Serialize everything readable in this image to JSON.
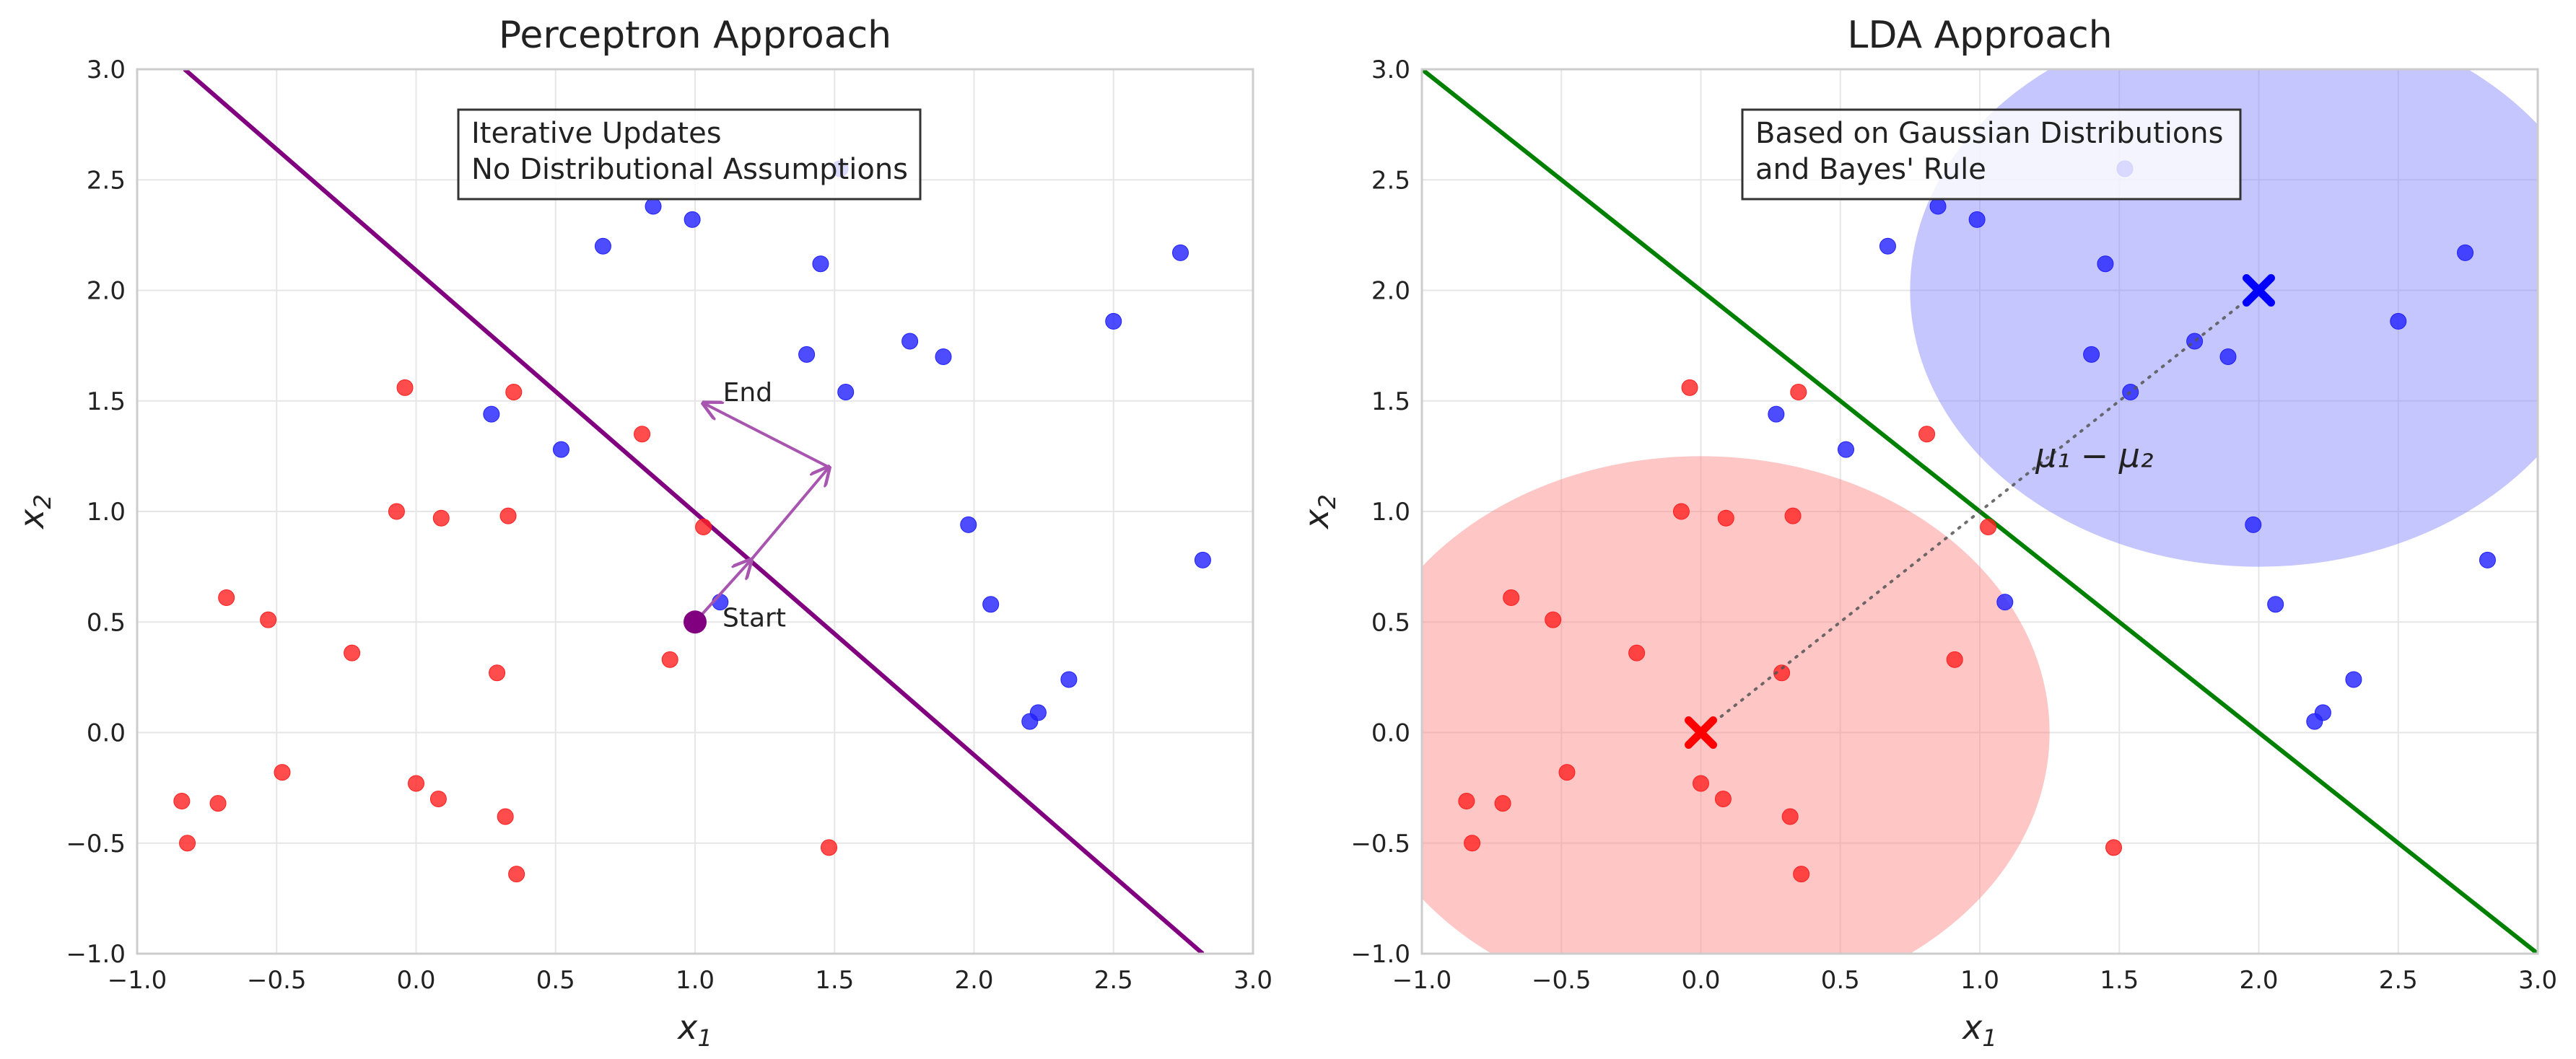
{
  "chart_data": [
    {
      "type": "scatter",
      "title": "Perceptron Approach",
      "xlabel_base": "x",
      "xlabel_sub": "1",
      "ylabel_base": "x",
      "ylabel_sub": "2",
      "xlim": [
        -1.0,
        3.0
      ],
      "ylim": [
        -1.0,
        3.0
      ],
      "xticks": [
        "−1.0",
        "−0.5",
        "0.0",
        "0.5",
        "1.0",
        "1.5",
        "2.0",
        "2.5",
        "3.0"
      ],
      "yticks": [
        "−1.0",
        "−0.5",
        "0.0",
        "0.5",
        "1.0",
        "1.5",
        "2.0",
        "2.5",
        "3.0"
      ],
      "grid": true,
      "annotation_box": [
        "Iterative Updates",
        "No Distributional Assumptions"
      ],
      "decision_line": {
        "p1": [
          -0.83,
          3.0
        ],
        "p2": [
          2.82,
          -1.0
        ],
        "color": "#800080"
      },
      "start_point": {
        "x": 1.0,
        "y": 0.5,
        "label": "Start"
      },
      "updates": [
        {
          "from": [
            1.0,
            0.5
          ],
          "to": [
            1.2,
            0.78
          ]
        },
        {
          "from": [
            1.2,
            0.78
          ],
          "to": [
            1.48,
            1.2
          ]
        },
        {
          "from": [
            1.48,
            1.2
          ],
          "to": [
            1.03,
            1.49
          ]
        }
      ],
      "end_label": {
        "x": 1.1,
        "y": 1.5,
        "text": "End"
      },
      "series": [
        {
          "color": "#ff2020",
          "points": [
            [
              -0.84,
              -0.31
            ],
            [
              -0.82,
              -0.5
            ],
            [
              -0.71,
              -0.32
            ],
            [
              -0.68,
              0.61
            ],
            [
              -0.53,
              0.51
            ],
            [
              -0.48,
              -0.18
            ],
            [
              -0.23,
              0.36
            ],
            [
              -0.07,
              1.0
            ],
            [
              -0.04,
              1.56
            ],
            [
              0.0,
              -0.23
            ],
            [
              0.08,
              -0.3
            ],
            [
              0.09,
              0.97
            ],
            [
              0.32,
              -0.38
            ],
            [
              0.33,
              0.98
            ],
            [
              0.29,
              0.27
            ],
            [
              0.35,
              1.54
            ],
            [
              0.36,
              -0.64
            ],
            [
              0.81,
              1.35
            ],
            [
              0.91,
              0.33
            ],
            [
              1.03,
              0.93
            ],
            [
              1.48,
              -0.52
            ]
          ]
        },
        {
          "color": "#2020ff",
          "points": [
            [
              0.27,
              1.44
            ],
            [
              0.52,
              1.28
            ],
            [
              0.67,
              2.2
            ],
            [
              0.85,
              2.38
            ],
            [
              0.99,
              2.32
            ],
            [
              1.09,
              0.59
            ],
            [
              1.4,
              1.71
            ],
            [
              1.45,
              2.12
            ],
            [
              1.52,
              2.55
            ],
            [
              1.54,
              1.54
            ],
            [
              1.77,
              1.77
            ],
            [
              1.89,
              1.7
            ],
            [
              1.98,
              0.94
            ],
            [
              2.06,
              0.58
            ],
            [
              2.2,
              0.05
            ],
            [
              2.23,
              0.09
            ],
            [
              2.34,
              0.24
            ],
            [
              2.5,
              1.86
            ],
            [
              2.74,
              2.17
            ],
            [
              2.82,
              0.78
            ]
          ]
        }
      ]
    },
    {
      "type": "scatter",
      "title": "LDA Approach",
      "xlabel_base": "x",
      "xlabel_sub": "1",
      "ylabel_base": "x",
      "ylabel_sub": "2",
      "xlim": [
        -1.0,
        3.0
      ],
      "ylim": [
        -1.0,
        3.0
      ],
      "xticks": [
        "−1.0",
        "−0.5",
        "0.0",
        "0.5",
        "1.0",
        "1.5",
        "2.0",
        "2.5",
        "3.0"
      ],
      "yticks": [
        "−1.0",
        "−0.5",
        "0.0",
        "0.5",
        "1.0",
        "1.5",
        "2.0",
        "2.5",
        "3.0"
      ],
      "grid": true,
      "annotation_box": [
        "Based on Gaussian Distributions",
        "and Bayes' Rule"
      ],
      "decision_line": {
        "p1": [
          -1.0,
          3.0
        ],
        "p2": [
          3.0,
          -1.0
        ],
        "color": "#008000"
      },
      "ellipses": [
        {
          "cx": 0.0,
          "cy": 0.0,
          "rx": 1.25,
          "ry": 1.25,
          "color": "#ff8080",
          "opacity": 0.45
        },
        {
          "cx": 2.0,
          "cy": 2.0,
          "rx": 1.25,
          "ry": 1.25,
          "color": "#8080ff",
          "opacity": 0.45
        }
      ],
      "means": [
        {
          "x": 0.0,
          "y": 0.0,
          "color": "#ff0000"
        },
        {
          "x": 2.0,
          "y": 2.0,
          "color": "#0000ff"
        }
      ],
      "mean_diff_label": {
        "x": 1.2,
        "y": 1.2,
        "text": "μ₁ − μ₂"
      },
      "series": [
        {
          "color": "#ff2020",
          "points": [
            [
              -0.84,
              -0.31
            ],
            [
              -0.82,
              -0.5
            ],
            [
              -0.71,
              -0.32
            ],
            [
              -0.68,
              0.61
            ],
            [
              -0.53,
              0.51
            ],
            [
              -0.48,
              -0.18
            ],
            [
              -0.23,
              0.36
            ],
            [
              -0.07,
              1.0
            ],
            [
              -0.04,
              1.56
            ],
            [
              0.0,
              -0.23
            ],
            [
              0.08,
              -0.3
            ],
            [
              0.09,
              0.97
            ],
            [
              0.32,
              -0.38
            ],
            [
              0.33,
              0.98
            ],
            [
              0.29,
              0.27
            ],
            [
              0.35,
              1.54
            ],
            [
              0.36,
              -0.64
            ],
            [
              0.81,
              1.35
            ],
            [
              0.91,
              0.33
            ],
            [
              1.03,
              0.93
            ],
            [
              1.48,
              -0.52
            ]
          ]
        },
        {
          "color": "#2020ff",
          "points": [
            [
              0.27,
              1.44
            ],
            [
              0.52,
              1.28
            ],
            [
              0.67,
              2.2
            ],
            [
              0.85,
              2.38
            ],
            [
              0.99,
              2.32
            ],
            [
              1.09,
              0.59
            ],
            [
              1.4,
              1.71
            ],
            [
              1.45,
              2.12
            ],
            [
              1.52,
              2.55
            ],
            [
              1.54,
              1.54
            ],
            [
              1.77,
              1.77
            ],
            [
              1.89,
              1.7
            ],
            [
              1.98,
              0.94
            ],
            [
              2.06,
              0.58
            ],
            [
              2.2,
              0.05
            ],
            [
              2.23,
              0.09
            ],
            [
              2.34,
              0.24
            ],
            [
              2.5,
              1.86
            ],
            [
              2.74,
              2.17
            ],
            [
              2.82,
              0.78
            ]
          ]
        }
      ]
    }
  ]
}
